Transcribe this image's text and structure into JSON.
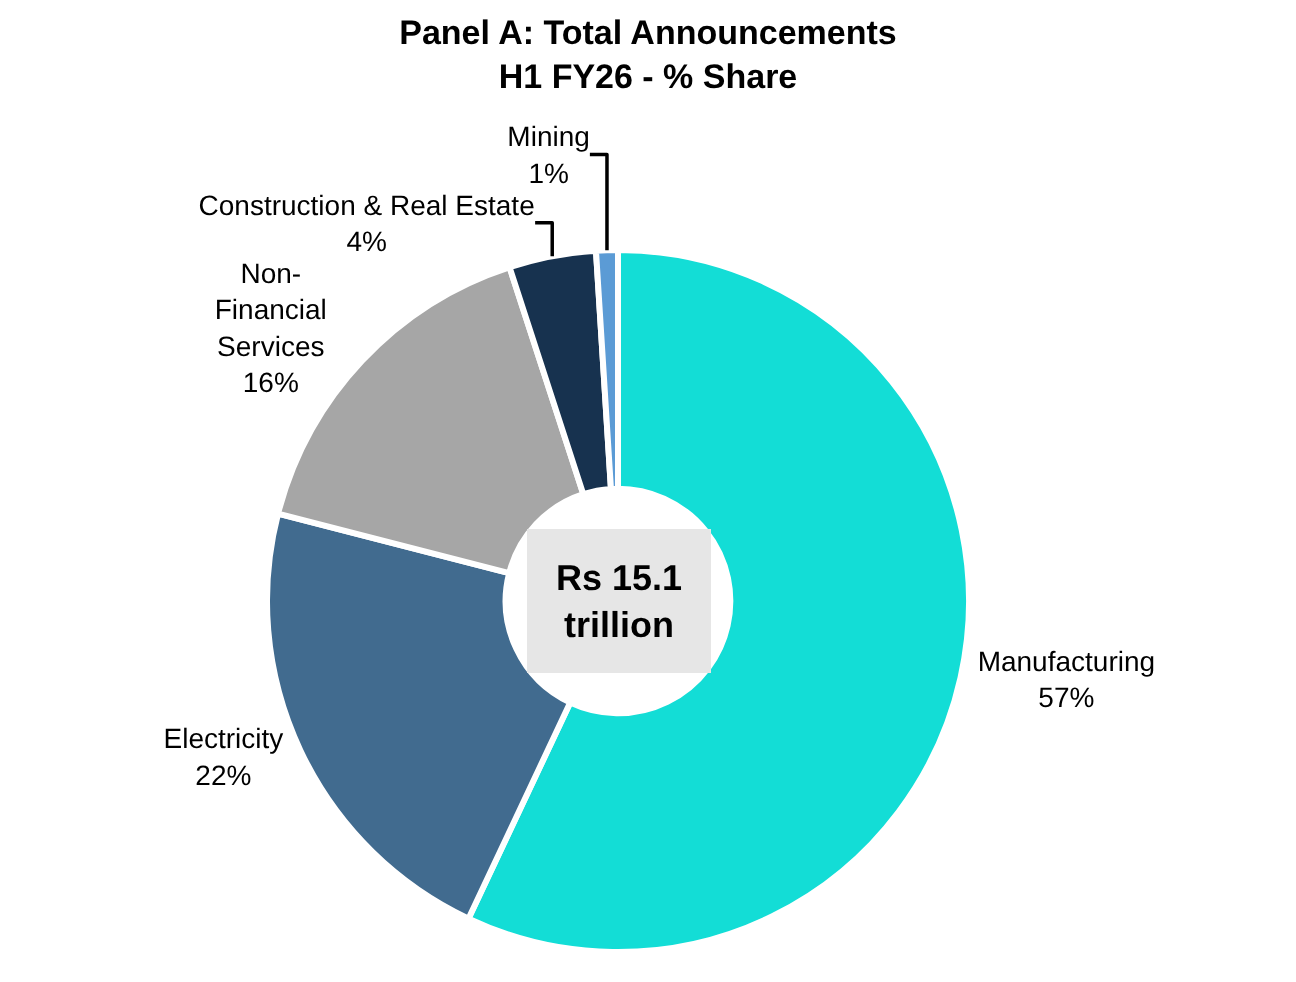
{
  "chart_data": {
    "type": "donut",
    "title": "Panel A: Total Announcements\nH1 FY26 - % Share",
    "categories": [
      "Manufacturing",
      "Electricity",
      "Non-\nFinancial\nServices",
      "Construction & Real Estate",
      "Mining"
    ],
    "values": [
      57,
      22,
      16,
      4,
      1
    ],
    "value_labels": [
      "57%",
      "22%",
      "16%",
      "4%",
      "1%"
    ],
    "colors": [
      "#13ddd6",
      "#416b8f",
      "#a6a6a6",
      "#17324f",
      "#5b9bd5"
    ],
    "annotations": [
      "Rs 15.1\ntrillion"
    ],
    "legend": false
  }
}
